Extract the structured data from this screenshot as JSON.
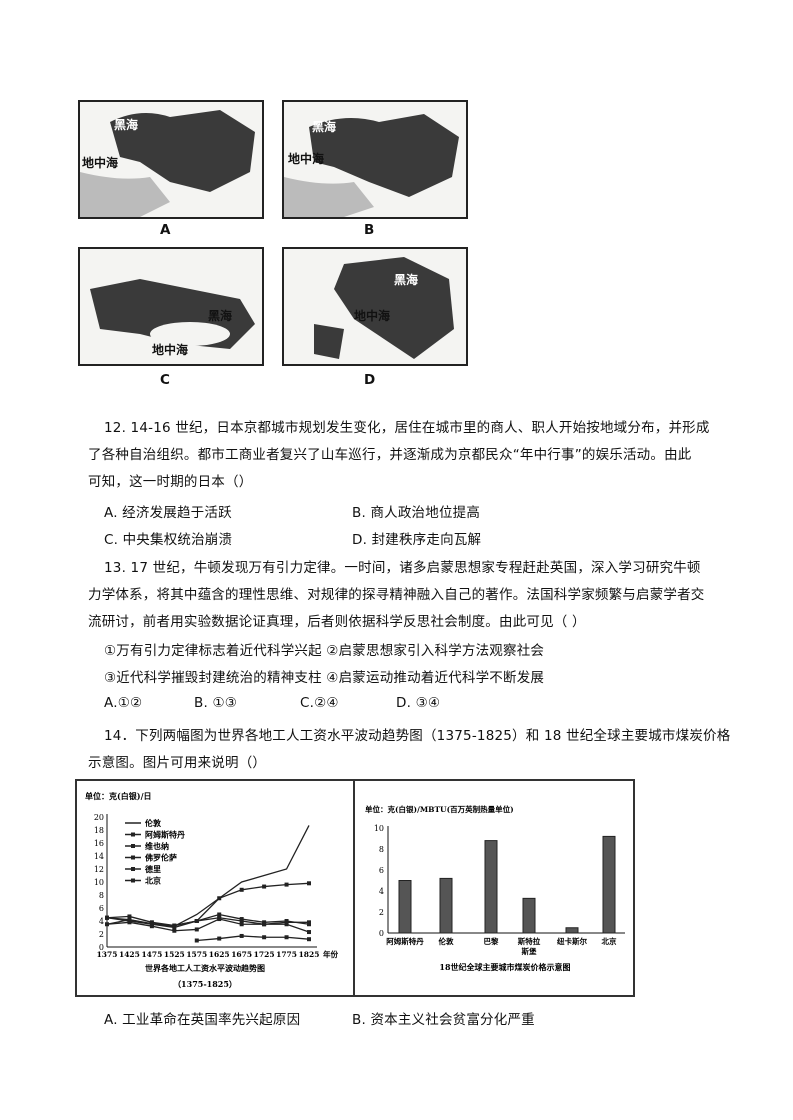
{
  "maps": [
    {
      "letter": "A",
      "labels": [
        "黑海",
        "地中海"
      ]
    },
    {
      "letter": "B",
      "labels": [
        "黑海",
        "地中海"
      ]
    },
    {
      "letter": "C",
      "labels": [
        "黑海",
        "地中海"
      ]
    },
    {
      "letter": "D",
      "labels": [
        "黑海",
        "地中海"
      ]
    }
  ],
  "q12": {
    "lines": [
      "12. 14-16 世纪，日本京都城市规划发生变化，居住在城市里的商人、职人开始按地域分布，并形成",
      "了各种自治组织。都市工商业者复兴了山车巡行，并逐渐成为京都民众“年中行事”的娱乐活动。由此",
      "可知，这一时期的日本（）"
    ],
    "options": [
      "A. 经济发展趋于活跃",
      "B. 商人政治地位提高",
      "C. 中央集权统治崩溃",
      "D. 封建秩序走向瓦解"
    ]
  },
  "q13": {
    "lines": [
      "13. 17 世纪，牛顿发现万有引力定律。一时间，诸多启蒙思想家专程赶赴英国，深入学习研究牛顿",
      "力学体系，将其中蕴含的理性思维、对规律的探寻精神融入自己的著作。法国科学家频繁与启蒙学者交",
      "流研讨，前者用实验数据论证真理，后者则依据科学反思社会制度。由此可见（  ）"
    ],
    "statements": [
      "①万有引力定律标志着近代科学兴起 ②启蒙思想家引入科学方法观察社会",
      "③近代科学摧毁封建统治的精神支柱 ④启蒙运动推动着近代科学不断发展"
    ],
    "options": [
      "A.①②",
      "B.  ①③",
      "C.②④",
      "D.  ③④"
    ]
  },
  "q14": {
    "lines": [
      "14．下列两幅图为世界各地工人工资水平波动趋势图（1375-1825）和 18 世纪全球主要城市煤炭价格",
      "示意图。图片可用来说明（）"
    ],
    "options": [
      "A. 工业革命在英国率先兴起原因",
      "B. 资本主义社会贫富分化严重"
    ]
  },
  "chart_data": [
    {
      "type": "line",
      "title": "世界各地工人工资水平波动趋势图",
      "subtitle": "（1375-1825）",
      "ylabel": "单位：克(白银)/日",
      "xlabel": "年份",
      "x": [
        1375,
        1425,
        1475,
        1525,
        1575,
        1625,
        1675,
        1725,
        1775,
        1825
      ],
      "ylim": [
        0,
        20
      ],
      "yticks": [
        0,
        2,
        4,
        6,
        8,
        10,
        12,
        14,
        16,
        18,
        20
      ],
      "legend": "top-left",
      "series": [
        {
          "name": "伦敦",
          "values": [
            3.5,
            4.2,
            3.5,
            3.2,
            5,
            7.5,
            10,
            11,
            12,
            18.7
          ]
        },
        {
          "name": "阿姆斯特丹",
          "values": [
            4.5,
            4.7,
            3.8,
            3.3,
            4,
            7.5,
            8.8,
            9.3,
            9.6,
            9.8
          ]
        },
        {
          "name": "维也纳",
          "values": [
            4.5,
            4,
            3.5,
            3,
            4,
            4.5,
            4,
            3.5,
            3.8,
            3.8
          ]
        },
        {
          "name": "佛罗伦萨",
          "values": [
            4.5,
            4.2,
            3.6,
            3.3,
            4,
            5,
            4.3,
            3.8,
            4,
            3.5
          ]
        },
        {
          "name": "德里",
          "values": [
            null,
            null,
            null,
            null,
            1,
            1.3,
            1.7,
            1.5,
            1.5,
            1.2
          ]
        },
        {
          "name": "北京",
          "values": [
            3.5,
            3.8,
            3.2,
            2.5,
            2.7,
            4.3,
            3.5,
            3.5,
            3.5,
            2.3
          ]
        }
      ]
    },
    {
      "type": "bar",
      "title": "18世纪全球主要城市煤炭价格示意图",
      "ylabel": "单位：克(白银)/MBTU(百万英制热量单位)",
      "categories": [
        "阿姆斯特丹",
        "伦敦",
        "巴黎",
        "斯特拉斯堡",
        "纽卡斯尔",
        "北京"
      ],
      "values": [
        5,
        5.2,
        8.8,
        3.3,
        0.5,
        9.2
      ],
      "ylim": [
        0,
        10
      ],
      "yticks": [
        0,
        2,
        4,
        6,
        8,
        10
      ]
    }
  ]
}
